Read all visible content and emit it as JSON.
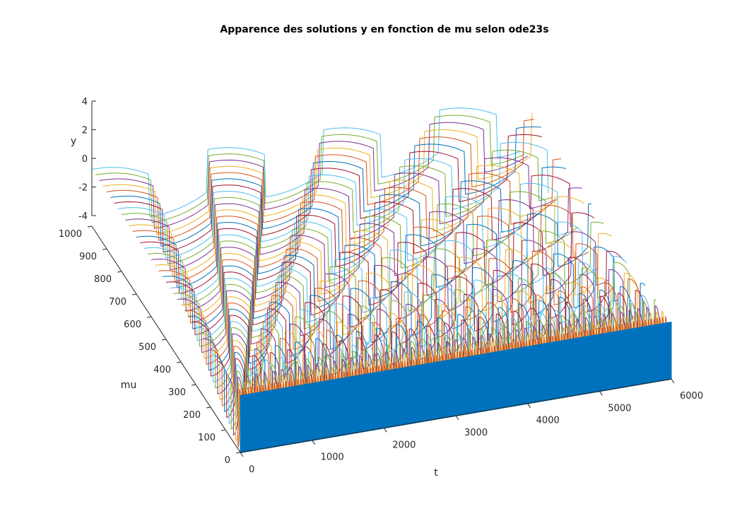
{
  "chart_data": {
    "type": "line",
    "subtype": "3d-waterfall",
    "title": "Apparence des solutions y en fonction de mu selon ode23s",
    "xlabel": "t",
    "ylabel": "mu",
    "zlabel": "y",
    "xlim": [
      0,
      6000
    ],
    "ylim": [
      0,
      1000
    ],
    "zlim": [
      -4,
      4
    ],
    "x_ticks": [
      "0",
      "1000",
      "2000",
      "3000",
      "4000",
      "5000",
      "6000"
    ],
    "y_ticks": [
      "0",
      "100",
      "200",
      "300",
      "400",
      "500",
      "600",
      "700",
      "800",
      "900",
      "1000"
    ],
    "z_ticks": [
      "4",
      "2",
      "0",
      "-2",
      "-4"
    ],
    "grid": false,
    "legend": "none",
    "series_note": "one van der Pol solution y(t) per mu value, mu from 0 to 1000 in steps of 25",
    "mu_values": [
      0,
      25,
      50,
      75,
      100,
      125,
      150,
      175,
      200,
      225,
      250,
      275,
      300,
      325,
      350,
      375,
      400,
      425,
      450,
      475,
      500,
      525,
      550,
      575,
      600,
      625,
      650,
      675,
      700,
      725,
      750,
      775,
      800,
      825,
      850,
      875,
      900,
      925,
      950,
      975,
      1000
    ],
    "amplitude": 2.0,
    "colors": [
      "#0072BD",
      "#D95319",
      "#EDB120",
      "#7E2F8E",
      "#77AC30",
      "#4DBEEE",
      "#A2142F"
    ]
  }
}
